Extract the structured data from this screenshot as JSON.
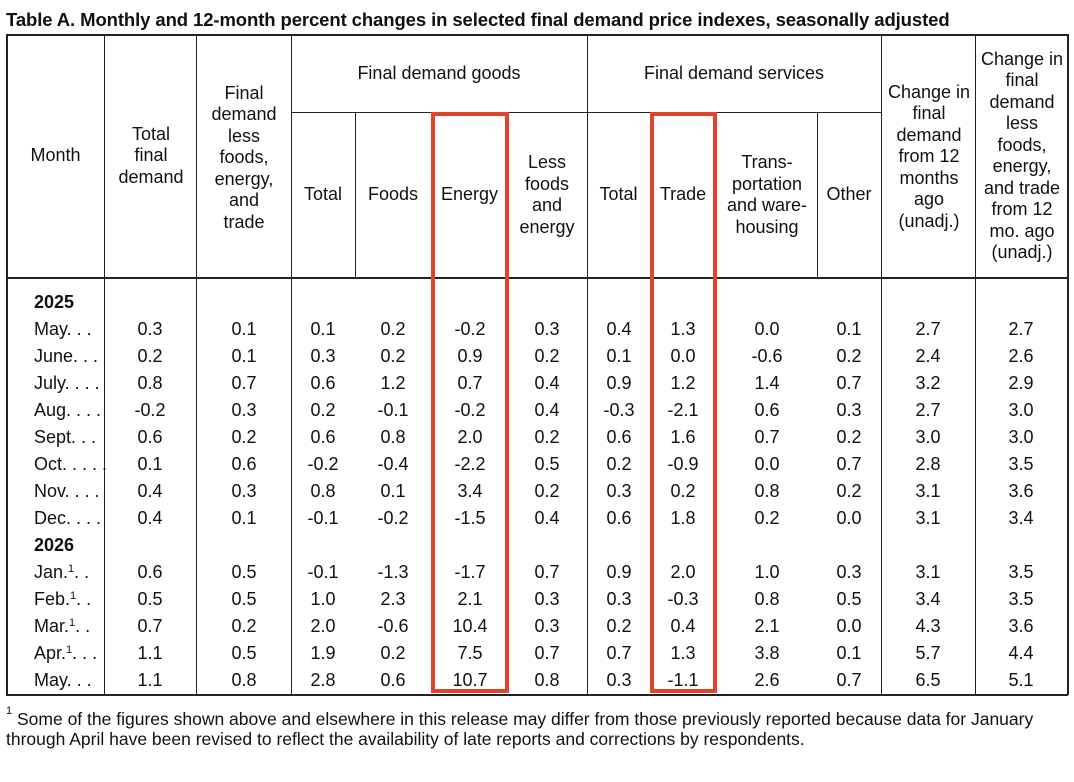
{
  "title": "Table A. Monthly and 12-month percent changes in selected final demand price indexes, seasonally adjusted",
  "headers": {
    "month": "Month",
    "total_final_demand": "Total final demand",
    "less_foods": "Final demand less foods, energy, and trade",
    "goods_group": "Final demand goods",
    "services_group": "Final demand services",
    "goods_total": "Total",
    "goods_foods": "Foods",
    "goods_energy": "Energy",
    "goods_less": "Less foods and energy",
    "services_total": "Total",
    "services_trade": "Trade",
    "services_transport": "Trans- portation and ware- housing",
    "services_other": "Other",
    "change12": "Change in final demand from 12 months ago (unadj.)",
    "change12_less": "Change in final demand less foods, energy, and trade from 12 mo. ago (unadj.)"
  },
  "years": [
    "2025",
    "2026"
  ],
  "rows": [
    {
      "month": "May. . .",
      "mark": "",
      "v": [
        "0.3",
        "0.1",
        "0.1",
        "0.2",
        "-0.2",
        "0.3",
        "0.4",
        "1.3",
        "0.0",
        "0.1",
        "2.7",
        "2.7"
      ]
    },
    {
      "month": "June. . .",
      "mark": "",
      "v": [
        "0.2",
        "0.1",
        "0.3",
        "0.2",
        "0.9",
        "0.2",
        "0.1",
        "0.0",
        "-0.6",
        "0.2",
        "2.4",
        "2.6"
      ]
    },
    {
      "month": "July. . . .",
      "mark": "",
      "v": [
        "0.8",
        "0.7",
        "0.6",
        "1.2",
        "0.7",
        "0.4",
        "0.9",
        "1.2",
        "1.4",
        "0.7",
        "3.2",
        "2.9"
      ]
    },
    {
      "month": "Aug. . . .",
      "mark": "",
      "v": [
        "-0.2",
        "0.3",
        "0.2",
        "-0.1",
        "-0.2",
        "0.4",
        "-0.3",
        "-2.1",
        "0.6",
        "0.3",
        "2.7",
        "3.0"
      ]
    },
    {
      "month": "Sept. . .",
      "mark": "",
      "v": [
        "0.6",
        "0.2",
        "0.6",
        "0.8",
        "2.0",
        "0.2",
        "0.6",
        "1.6",
        "0.7",
        "0.2",
        "3.0",
        "3.0"
      ]
    },
    {
      "month": "Oct. . . . .",
      "mark": "",
      "v": [
        "0.1",
        "0.6",
        "-0.2",
        "-0.4",
        "-2.2",
        "0.5",
        "0.2",
        "-0.9",
        "0.0",
        "0.7",
        "2.8",
        "3.5"
      ]
    },
    {
      "month": "Nov. . . .",
      "mark": "",
      "v": [
        "0.4",
        "0.3",
        "0.8",
        "0.1",
        "3.4",
        "0.2",
        "0.3",
        "0.2",
        "0.8",
        "0.2",
        "3.1",
        "3.6"
      ]
    },
    {
      "month": "Dec. . . .",
      "mark": "",
      "v": [
        "0.4",
        "0.1",
        "-0.1",
        "-0.2",
        "-1.5",
        "0.4",
        "0.6",
        "1.8",
        "0.2",
        "0.0",
        "3.1",
        "3.4"
      ]
    },
    {
      "month": "Jan.",
      "mark": "1",
      "dots": ". .",
      "v": [
        "0.6",
        "0.5",
        "-0.1",
        "-1.3",
        "-1.7",
        "0.7",
        "0.9",
        "2.0",
        "1.0",
        "0.3",
        "3.1",
        "3.5"
      ]
    },
    {
      "month": "Feb.",
      "mark": "1",
      "dots": ". .",
      "v": [
        "0.5",
        "0.5",
        "1.0",
        "2.3",
        "2.1",
        "0.3",
        "0.3",
        "-0.3",
        "0.8",
        "0.5",
        "3.4",
        "3.5"
      ]
    },
    {
      "month": "Mar.",
      "mark": "1",
      "dots": ". .",
      "v": [
        "0.7",
        "0.2",
        "2.0",
        "-0.6",
        "10.4",
        "0.3",
        "0.2",
        "0.4",
        "2.1",
        "0.0",
        "4.3",
        "3.6"
      ]
    },
    {
      "month": "Apr.",
      "mark": "1",
      "dots": ". . .",
      "v": [
        "1.1",
        "0.5",
        "1.9",
        "0.2",
        "7.5",
        "0.7",
        "0.7",
        "1.3",
        "3.8",
        "0.1",
        "5.7",
        "4.4"
      ]
    },
    {
      "month": "May. . .",
      "mark": "",
      "v": [
        "1.1",
        "0.8",
        "2.8",
        "0.6",
        "10.7",
        "0.8",
        "0.3",
        "-1.1",
        "2.6",
        "0.7",
        "6.5",
        "5.1"
      ]
    }
  ],
  "footnote": {
    "mark": "1",
    "text": "Some of the figures shown above and elsewhere in this release may differ from those previously reported because data for January through April have been revised to reflect the availability of late reports and corrections by respondents."
  },
  "highlight_color": "#e0452b"
}
